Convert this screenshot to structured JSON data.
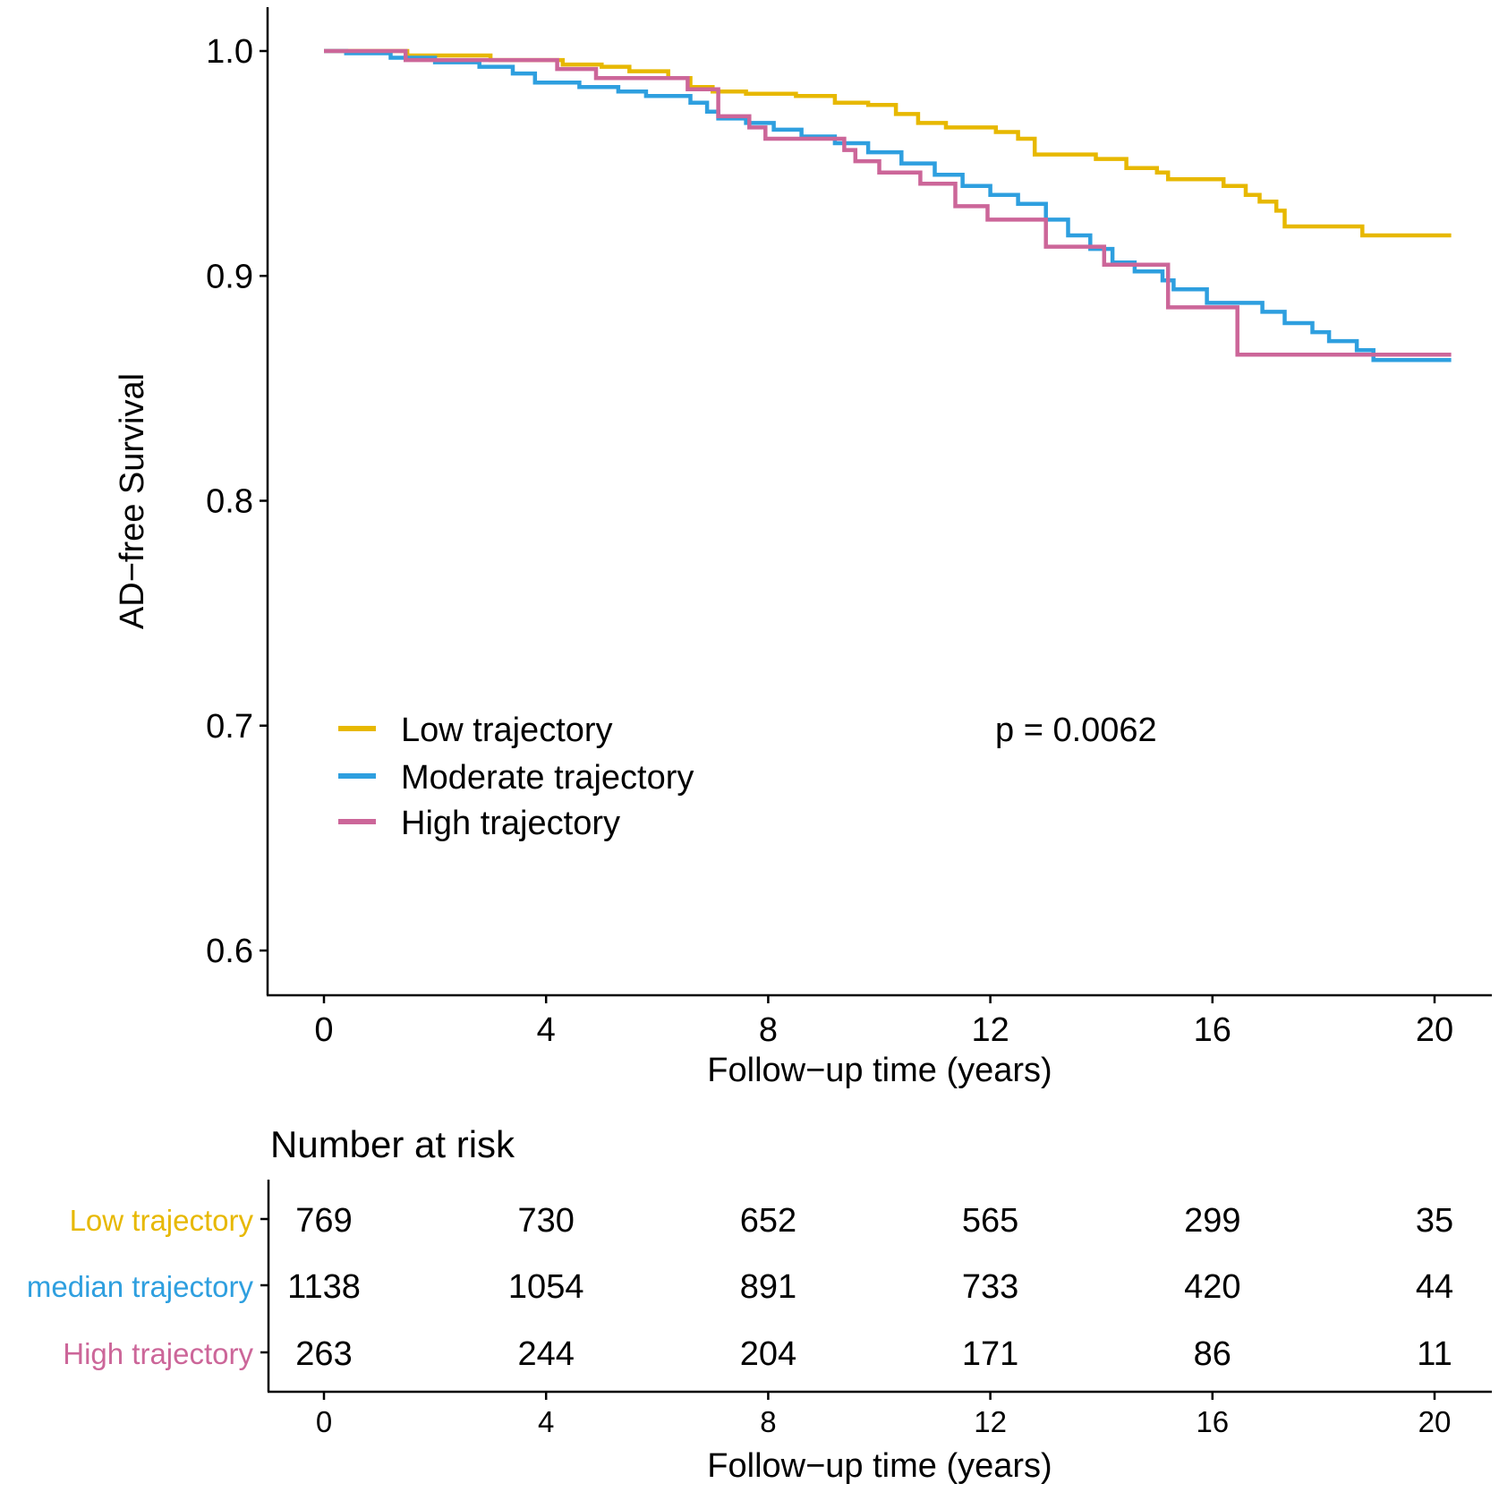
{
  "chart_data": [
    {
      "type": "line",
      "subtype": "kaplan-meier-step",
      "title": "",
      "xlabel": "Follow−up time (years)",
      "ylabel": "AD−free Survival",
      "xlim": [
        -1,
        21
      ],
      "ylim": [
        0.58,
        1.02
      ],
      "xticks": [
        0,
        4,
        8,
        12,
        16,
        20
      ],
      "yticks": [
        0.6,
        0.7,
        0.8,
        0.9,
        1.0
      ],
      "ytick_labels": [
        "0.6",
        "0.7",
        "0.8",
        "0.9",
        "1.0"
      ],
      "grid": false,
      "legend": {
        "placement": "center-left",
        "entries": [
          "Low trajectory",
          "Moderate trajectory",
          "High trajectory"
        ]
      },
      "annotation": "p = 0.0062",
      "series": [
        {
          "name": "Low trajectory",
          "color": "#E7B800",
          "x": [
            0,
            1.5,
            3.0,
            4.3,
            5.0,
            5.5,
            6.2,
            6.6,
            7.0,
            7.6,
            8.5,
            9.2,
            9.8,
            10.3,
            10.7,
            11.2,
            12.1,
            12.5,
            12.8,
            13.9,
            14.45,
            15.0,
            15.2,
            16.2,
            16.6,
            16.85,
            17.15,
            17.3,
            18.7,
            20.3
          ],
          "y": [
            1.0,
            0.998,
            0.996,
            0.994,
            0.993,
            0.991,
            0.988,
            0.984,
            0.982,
            0.981,
            0.98,
            0.977,
            0.976,
            0.972,
            0.968,
            0.966,
            0.964,
            0.961,
            0.954,
            0.952,
            0.948,
            0.946,
            0.943,
            0.94,
            0.936,
            0.933,
            0.929,
            0.922,
            0.918,
            0.918
          ]
        },
        {
          "name": "Moderate trajectory",
          "color": "#2E9FDF",
          "x": [
            0,
            0.4,
            1.2,
            2.0,
            2.8,
            3.4,
            3.8,
            4.6,
            5.3,
            5.8,
            6.6,
            6.9,
            7.1,
            7.6,
            8.1,
            8.6,
            9.2,
            9.8,
            10.4,
            11.0,
            11.5,
            12.0,
            12.5,
            13.0,
            13.4,
            13.8,
            14.2,
            14.6,
            15.1,
            15.3,
            15.9,
            16.9,
            17.3,
            17.8,
            18.1,
            18.6,
            18.9,
            20.3
          ],
          "y": [
            1.0,
            0.999,
            0.997,
            0.995,
            0.993,
            0.99,
            0.986,
            0.984,
            0.982,
            0.98,
            0.977,
            0.973,
            0.97,
            0.968,
            0.965,
            0.962,
            0.959,
            0.955,
            0.95,
            0.945,
            0.94,
            0.936,
            0.932,
            0.925,
            0.918,
            0.912,
            0.906,
            0.902,
            0.898,
            0.894,
            0.888,
            0.884,
            0.879,
            0.875,
            0.871,
            0.867,
            0.8626,
            0.8626
          ]
        },
        {
          "name": "High trajectory",
          "color": "#CC6699",
          "x": [
            0,
            1.47,
            4.2,
            4.9,
            6.55,
            7.1,
            7.66,
            7.95,
            9.37,
            9.57,
            10.0,
            10.74,
            11.37,
            11.95,
            13.0,
            14.05,
            15.2,
            16.45,
            20.3
          ],
          "y": [
            1.0,
            0.996,
            0.992,
            0.988,
            0.983,
            0.971,
            0.966,
            0.961,
            0.956,
            0.951,
            0.946,
            0.941,
            0.931,
            0.925,
            0.913,
            0.905,
            0.886,
            0.865,
            0.865
          ]
        }
      ]
    },
    {
      "type": "table",
      "title": "Number at risk",
      "xlabel": "Follow−up time (years)",
      "xticks": [
        0,
        4,
        8,
        12,
        16,
        20
      ],
      "rows": [
        {
          "name": "Low trajectory",
          "color": "#E7B800",
          "values": [
            769,
            730,
            652,
            565,
            299,
            35
          ]
        },
        {
          "name": "median trajectory",
          "color": "#2E9FDF",
          "values": [
            1138,
            1054,
            891,
            733,
            420,
            44
          ]
        },
        {
          "name": "High trajectory",
          "color": "#CC6699",
          "values": [
            263,
            244,
            204,
            171,
            86,
            11
          ]
        }
      ]
    }
  ],
  "labels": {
    "ylabel": "AD−free Survival",
    "xlabel_main": "Follow−up time (years)",
    "xlabel_risk": "Follow−up time (years)",
    "risk_title": "Number at risk",
    "pvalue": "p = 0.0062",
    "legend_low": "Low trajectory",
    "legend_moderate": "Moderate trajectory",
    "legend_high": "High trajectory",
    "risk_row_low": "Low trajectory",
    "risk_row_median": "median trajectory",
    "risk_row_high": "High trajectory"
  },
  "colors": {
    "low": "#E7B800",
    "moderate": "#2E9FDF",
    "high": "#CC6699"
  }
}
